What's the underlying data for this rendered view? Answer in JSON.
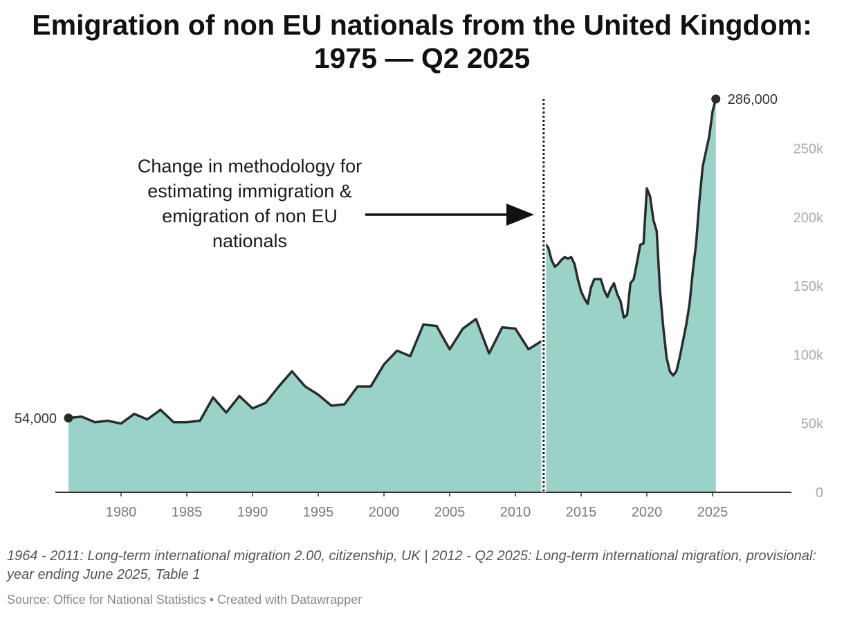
{
  "title_line1": "Emigration of non EU nationals from the United Kingdom:",
  "title_line2": "1975 — Q2 2025",
  "notes": "1964 - 2011: Long-term international migration 2.00, citizenship, UK | 2012 - Q2 2025: Long-term international migration, provisional: year ending June 2025, Table 1",
  "source": "Source: Office for National Statistics • Created with Datawrapper",
  "colors": {
    "area": "#9bd2c8",
    "line": "#2b2b2b",
    "axis": "#333333"
  },
  "chart_data": {
    "type": "area",
    "xlim": [
      1975,
      2031
    ],
    "ylim": [
      0,
      286000
    ],
    "y_ticks": [
      {
        "value": 0,
        "label": "0"
      },
      {
        "value": 50000,
        "label": "50k"
      },
      {
        "value": 100000,
        "label": "100k"
      },
      {
        "value": 150000,
        "label": "150k"
      },
      {
        "value": 200000,
        "label": "200k"
      },
      {
        "value": 250000,
        "label": "250k"
      }
    ],
    "x_ticks": [
      {
        "value": 1980,
        "label": "1980"
      },
      {
        "value": 1985,
        "label": "1985"
      },
      {
        "value": 1990,
        "label": "1990"
      },
      {
        "value": 1995,
        "label": "1995"
      },
      {
        "value": 2000,
        "label": "2000"
      },
      {
        "value": 2005,
        "label": "2005"
      },
      {
        "value": 2010,
        "label": "2010"
      },
      {
        "value": 2015,
        "label": "2015"
      },
      {
        "value": 2020,
        "label": "2020"
      },
      {
        "value": 2025,
        "label": "2025"
      }
    ],
    "series": [
      {
        "points": [
          [
            1976,
            54000
          ],
          [
            1977,
            55000
          ],
          [
            1978,
            51000
          ],
          [
            1979,
            52000
          ],
          [
            1980,
            50000
          ],
          [
            1981,
            57000
          ],
          [
            1982,
            53000
          ],
          [
            1983,
            60000
          ],
          [
            1984,
            51000
          ],
          [
            1985,
            51000
          ],
          [
            1986,
            52000
          ],
          [
            1987,
            69000
          ],
          [
            1988,
            58000
          ],
          [
            1989,
            70000
          ],
          [
            1990,
            61000
          ],
          [
            1991,
            65000
          ],
          [
            1992,
            77000
          ],
          [
            1993,
            88000
          ],
          [
            1994,
            77000
          ],
          [
            1995,
            71000
          ],
          [
            1996,
            63000
          ],
          [
            1997,
            64000
          ],
          [
            1998,
            77000
          ],
          [
            1999,
            77000
          ],
          [
            2000,
            93000
          ],
          [
            2001,
            103000
          ],
          [
            2002,
            99000
          ],
          [
            2003,
            122000
          ],
          [
            2004,
            121000
          ],
          [
            2005,
            104000
          ],
          [
            2006,
            119000
          ],
          [
            2007,
            126000
          ],
          [
            2008,
            101000
          ],
          [
            2009,
            120000
          ],
          [
            2010,
            119000
          ],
          [
            2011,
            104000
          ],
          [
            2012,
            110000
          ]
        ]
      },
      {
        "points": [
          [
            2012.25,
            181000
          ],
          [
            2012.5,
            178000
          ],
          [
            2012.75,
            169000
          ],
          [
            2013.0,
            164000
          ],
          [
            2013.25,
            166000
          ],
          [
            2013.5,
            169000
          ],
          [
            2013.75,
            171000
          ],
          [
            2014.0,
            170000
          ],
          [
            2014.25,
            171000
          ],
          [
            2014.5,
            166000
          ],
          [
            2014.75,
            155000
          ],
          [
            2015.0,
            146000
          ],
          [
            2015.25,
            141000
          ],
          [
            2015.5,
            137000
          ],
          [
            2015.75,
            149000
          ],
          [
            2016.0,
            155000
          ],
          [
            2016.25,
            155000
          ],
          [
            2016.5,
            155000
          ],
          [
            2016.75,
            147000
          ],
          [
            2017.0,
            142000
          ],
          [
            2017.25,
            148000
          ],
          [
            2017.5,
            152000
          ],
          [
            2017.75,
            144000
          ],
          [
            2018.0,
            139000
          ],
          [
            2018.25,
            127000
          ],
          [
            2018.5,
            129000
          ],
          [
            2018.75,
            152000
          ],
          [
            2019.0,
            155000
          ],
          [
            2019.25,
            167000
          ],
          [
            2019.5,
            180000
          ],
          [
            2019.75,
            181000
          ],
          [
            2020.0,
            221000
          ],
          [
            2020.25,
            215000
          ],
          [
            2020.5,
            198000
          ],
          [
            2020.75,
            190000
          ],
          [
            2021.0,
            147000
          ],
          [
            2021.25,
            120000
          ],
          [
            2021.5,
            98000
          ],
          [
            2021.75,
            88000
          ],
          [
            2022.0,
            85000
          ],
          [
            2022.25,
            88000
          ],
          [
            2022.5,
            98000
          ],
          [
            2022.75,
            110000
          ],
          [
            2023.0,
            122000
          ],
          [
            2023.25,
            137000
          ],
          [
            2023.5,
            161000
          ],
          [
            2023.75,
            181000
          ],
          [
            2024.0,
            212000
          ],
          [
            2024.25,
            237000
          ],
          [
            2024.5,
            248000
          ],
          [
            2024.75,
            259000
          ],
          [
            2025.0,
            277000
          ],
          [
            2025.25,
            286000
          ]
        ]
      }
    ],
    "start_label": "54,000",
    "end_label": "286,000",
    "annotation": {
      "text": "Change in methodology for estimating immigration & emigration of non EU nationals",
      "x": 2012.15
    },
    "notes": "1964 - 2011: Long-term international migration 2.00, citizenship, UK | 2012 - Q2 2025: Long-term international migration, provisional: year ending June 2025, Table 1"
  }
}
